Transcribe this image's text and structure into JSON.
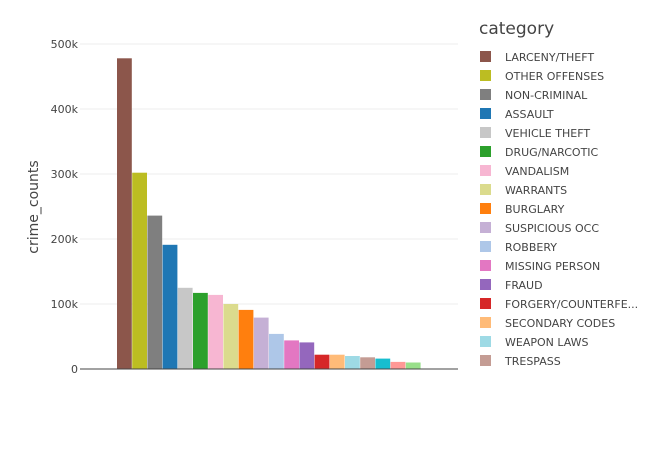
{
  "chart_data": {
    "type": "bar",
    "xlabel": "",
    "ylabel": "crime_counts",
    "ylim": [
      0,
      500000
    ],
    "yticks": [
      {
        "value": 0,
        "label": "0"
      },
      {
        "value": 100000,
        "label": "100k"
      },
      {
        "value": 200000,
        "label": "200k"
      },
      {
        "value": 300000,
        "label": "300k"
      },
      {
        "value": 400000,
        "label": "400k"
      },
      {
        "value": 500000,
        "label": "500k"
      }
    ],
    "grid": true,
    "legend": {
      "title": "category",
      "placement": "right"
    },
    "series": [
      {
        "name": "LARCENY/THEFT",
        "value": 478000,
        "color": "#8c564b"
      },
      {
        "name": "OTHER OFFENSES",
        "value": 302000,
        "color": "#bcbd22"
      },
      {
        "name": "NON-CRIMINAL",
        "value": 236000,
        "color": "#7f7f7f"
      },
      {
        "name": "ASSAULT",
        "value": 191000,
        "color": "#1f77b4"
      },
      {
        "name": "VEHICLE THEFT",
        "value": 125000,
        "color": "#c7c7c7"
      },
      {
        "name": "DRUG/NARCOTIC",
        "value": 117000,
        "color": "#2ca02c"
      },
      {
        "name": "VANDALISM",
        "value": 114000,
        "color": "#f7b6d2"
      },
      {
        "name": "WARRANTS",
        "value": 100000,
        "color": "#dbdb8d"
      },
      {
        "name": "BURGLARY",
        "value": 91000,
        "color": "#ff7f0e"
      },
      {
        "name": "SUSPICIOUS OCC",
        "value": 79000,
        "color": "#c5b0d5"
      },
      {
        "name": "ROBBERY",
        "value": 54000,
        "color": "#aec7e8"
      },
      {
        "name": "MISSING PERSON",
        "value": 44000,
        "color": "#e377c2"
      },
      {
        "name": "FRAUD",
        "value": 41000,
        "color": "#9467bd"
      },
      {
        "name": "FORGERY/COUNTERFE...",
        "value": 22000,
        "color": "#d62728"
      },
      {
        "name": "SECONDARY CODES",
        "value": 22000,
        "color": "#ffbb78"
      },
      {
        "name": "WEAPON LAWS",
        "value": 20000,
        "color": "#9edae5"
      },
      {
        "name": "TRESPASS",
        "value": 18000,
        "color": "#c49c94"
      },
      {
        "name": "",
        "value": 16000,
        "color": "#17becf"
      },
      {
        "name": "",
        "value": 11000,
        "color": "#ff9896"
      },
      {
        "name": "",
        "value": 10000,
        "color": "#98df8a"
      }
    ]
  }
}
